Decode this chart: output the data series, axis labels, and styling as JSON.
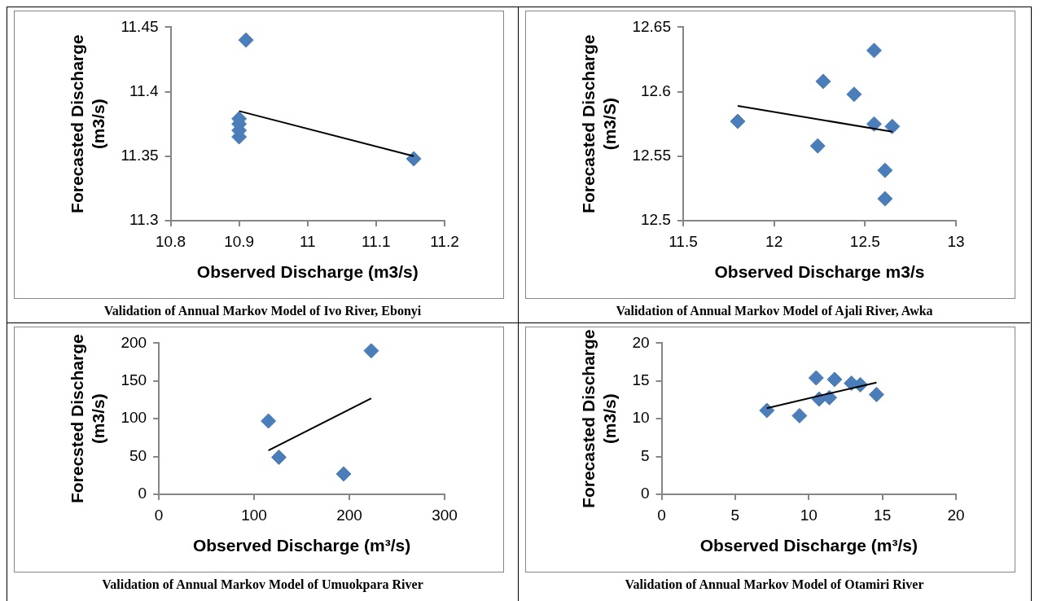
{
  "chart_data": [
    {
      "type": "scatter",
      "xlabel": "Observed Discharge (m3/s)",
      "ylabel": "Forecasted Discharge\n(m3/s)",
      "xlim": [
        10.8,
        11.2
      ],
      "xticks": [
        10.8,
        10.9,
        11,
        11.1,
        11.2
      ],
      "ylim": [
        11.3,
        11.45
      ],
      "yticks": [
        11.3,
        11.35,
        11.4,
        11.45
      ],
      "marker": "diamond",
      "annotations": [
        "Validation of Annual Markov Model of Ivo River, Ebonyi"
      ],
      "series": [
        {
          "type": "scatter",
          "color": "#4a7ebb",
          "x": [
            10.91,
            10.9,
            10.9,
            10.9,
            10.9,
            11.155
          ],
          "values": [
            11.44,
            11.379,
            11.375,
            11.37,
            11.365,
            11.348
          ]
        },
        {
          "type": "line",
          "color": "#000000",
          "marker": "none",
          "x": [
            10.9,
            11.155
          ],
          "values": [
            11.385,
            11.35
          ]
        }
      ]
    },
    {
      "type": "scatter",
      "xlabel": "Observed Discharge m3/s",
      "ylabel": "Forecasted Discharge\n(m3/S)",
      "xlim": [
        11.5,
        13
      ],
      "xticks": [
        11.5,
        12,
        12.5,
        13
      ],
      "ylim": [
        12.5,
        12.65
      ],
      "yticks": [
        12.5,
        12.55,
        12.6,
        12.65
      ],
      "marker": "diamond",
      "annotations": [
        "Validation of Annual Markov Model of Ajali River, Awka"
      ],
      "series": [
        {
          "type": "scatter",
          "color": "#4a7ebb",
          "x": [
            11.8,
            12.27,
            12.24,
            12.44,
            12.55,
            12.55,
            12.65,
            12.61,
            12.61
          ],
          "values": [
            12.577,
            12.608,
            12.558,
            12.598,
            12.632,
            12.575,
            12.573,
            12.539,
            12.517
          ]
        },
        {
          "type": "line",
          "color": "#000000",
          "marker": "none",
          "x": [
            11.8,
            12.65
          ],
          "values": [
            12.589,
            12.569
          ]
        }
      ]
    },
    {
      "type": "scatter",
      "xlabel": "Observed Discharge (m³/s)",
      "ylabel": "Forecsted Discharge\n(m3/s)",
      "xlim": [
        0,
        300
      ],
      "xticks": [
        0,
        100,
        200,
        300
      ],
      "ylim": [
        0,
        200
      ],
      "yticks": [
        0,
        50,
        100,
        150,
        200
      ],
      "marker": "diamond",
      "annotations": [
        "Validation of Annual Markov Model of Umuokpara River"
      ],
      "series": [
        {
          "type": "scatter",
          "color": "#4a7ebb",
          "x": [
            115,
            126,
            194,
            223
          ],
          "values": [
            97,
            49,
            27,
            190
          ]
        },
        {
          "type": "line",
          "color": "#000000",
          "marker": "none",
          "x": [
            115,
            223
          ],
          "values": [
            58,
            127
          ]
        }
      ]
    },
    {
      "type": "scatter",
      "xlabel": "Observed Discharge (m³/s)",
      "ylabel": "Forecasted Discharge\n(m3/s)",
      "xlim": [
        0,
        20
      ],
      "xticks": [
        0,
        5,
        10,
        15,
        20
      ],
      "ylim": [
        0,
        20
      ],
      "yticks": [
        0,
        5,
        10,
        15,
        20
      ],
      "marker": "diamond",
      "annotations": [
        "Validation of Annual Markov Model of Otamiri River"
      ],
      "series": [
        {
          "type": "scatter",
          "color": "#4a7ebb",
          "x": [
            7.15,
            9.37,
            10.5,
            10.7,
            11.4,
            11.75,
            12.9,
            13.5,
            14.6
          ],
          "values": [
            11.1,
            10.4,
            15.4,
            12.6,
            12.8,
            15.2,
            14.7,
            14.5,
            13.2
          ]
        },
        {
          "type": "line",
          "color": "#000000",
          "marker": "none",
          "x": [
            7.15,
            14.6
          ],
          "values": [
            11.4,
            14.8
          ]
        }
      ]
    }
  ]
}
